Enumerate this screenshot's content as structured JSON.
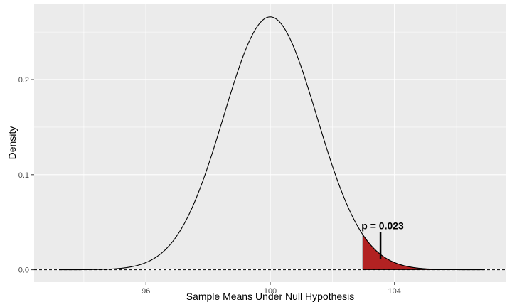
{
  "chart_data": {
    "type": "area",
    "title": "",
    "xlabel": "Sample Means Under Null Hypothesis",
    "ylabel": "Density",
    "xlim": [
      92.4,
      107.6
    ],
    "ylim": [
      -0.013,
      0.28
    ],
    "x_ticks": [
      96,
      100,
      104
    ],
    "y_ticks": [
      0.0,
      0.1,
      0.2
    ],
    "x_tick_labels": [
      "96",
      "100",
      "104"
    ],
    "y_tick_labels": [
      "0.0",
      "0.1",
      "0.2"
    ],
    "grid": true,
    "distribution": {
      "family": "normal",
      "mean": 100,
      "sd": 1.5,
      "x_range": [
        93.2,
        106.9
      ]
    },
    "shaded_region": {
      "x_from": 102.98,
      "x_to": 106.9,
      "fill": "#b22222"
    },
    "reference_line": {
      "y": 0.0,
      "style": "dashed"
    },
    "annotation": {
      "text": "p = 0.023",
      "x": 103.55,
      "y": 0.045,
      "segment_y": [
        0.011,
        0.04
      ]
    },
    "colors": {
      "panel": "#ebebeb",
      "grid": "#ffffff",
      "curve": "#000000"
    }
  }
}
